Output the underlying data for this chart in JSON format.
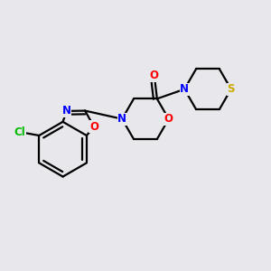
{
  "bg_color": "#e8e8ec",
  "bond_color": "#000000",
  "bond_width": 1.6,
  "atom_colors": {
    "N": "#0000ff",
    "O": "#ff0000",
    "S": "#ccaa00",
    "Cl": "#00bb00"
  },
  "font_size": 8.5,
  "fig_size": [
    3.0,
    3.0
  ],
  "dpi": 100
}
